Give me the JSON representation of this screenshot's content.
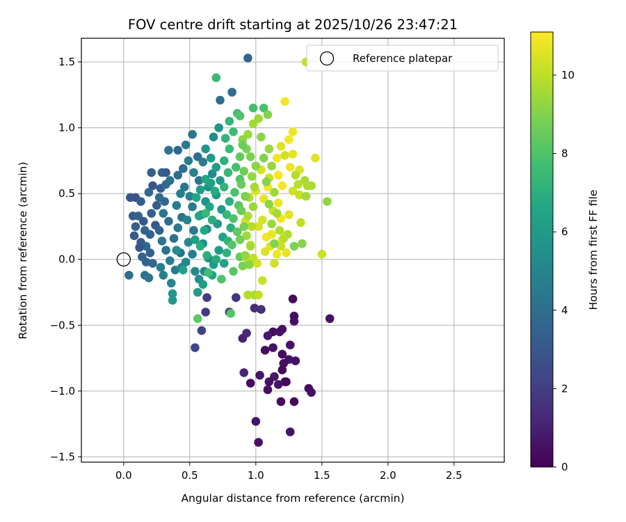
{
  "chart_data": {
    "type": "scatter",
    "title": "FOV centre drift starting at 2025/10/26 23:47:21",
    "xlabel": "Angular distance from reference (arcmin)",
    "ylabel": "Rotation from reference (arcmin)",
    "xlim": [
      -0.32,
      2.88
    ],
    "ylim": [
      -1.54,
      1.68
    ],
    "xticks": [
      0.0,
      0.5,
      1.0,
      1.5,
      2.0,
      2.5
    ],
    "xtick_labels": [
      "0.0",
      "0.5",
      "1.0",
      "1.5",
      "2.0",
      "2.5"
    ],
    "yticks": [
      -1.5,
      -1.0,
      -0.5,
      0.0,
      0.5,
      1.0,
      1.5
    ],
    "ytick_labels": [
      "−1.5",
      "−1.0",
      "−0.5",
      "0.0",
      "0.5",
      "1.0",
      "1.5"
    ],
    "grid": true,
    "legend": {
      "location": "top-right",
      "entries": [
        "Reference platepar"
      ]
    },
    "reference": {
      "x": 0.0,
      "y": 0.0,
      "label": "Reference platepar"
    },
    "colorbar": {
      "label": "Hours from first FF file",
      "colormap": "viridis",
      "range": [
        0,
        11.1
      ],
      "ticks": [
        0,
        2,
        4,
        6,
        8,
        10
      ],
      "tick_labels": [
        "0",
        "2",
        "4",
        "6",
        "8",
        "10"
      ]
    },
    "points": [
      [
        1.28,
        -0.3,
        0.3
      ],
      [
        1.29,
        -0.43,
        0.4
      ],
      [
        1.56,
        -0.45,
        0.5
      ],
      [
        1.29,
        -0.47,
        0.4
      ],
      [
        1.26,
        -0.65,
        0.5
      ],
      [
        1.13,
        -0.55,
        0.4
      ],
      [
        1.18,
        -0.55,
        0.6
      ],
      [
        1.2,
        -0.53,
        0.5
      ],
      [
        1.09,
        -0.58,
        0.8
      ],
      [
        1.13,
        -0.67,
        0.5
      ],
      [
        1.07,
        -0.69,
        0.4
      ],
      [
        1.2,
        -0.72,
        0.3
      ],
      [
        1.25,
        -0.76,
        0.6
      ],
      [
        1.3,
        -0.77,
        0.5
      ],
      [
        1.21,
        -0.79,
        0.4
      ],
      [
        1.2,
        -0.84,
        0.3
      ],
      [
        1.14,
        -0.89,
        0.7
      ],
      [
        1.03,
        -0.88,
        0.6
      ],
      [
        1.1,
        -0.93,
        0.5
      ],
      [
        1.22,
        -0.93,
        0.4
      ],
      [
        1.23,
        -0.93,
        0.2
      ],
      [
        1.17,
        -0.95,
        0.6
      ],
      [
        1.09,
        -0.99,
        0.5
      ],
      [
        0.96,
        -0.94,
        0.3
      ],
      [
        1.4,
        -0.98,
        0.4
      ],
      [
        1.42,
        -1.01,
        0.5
      ],
      [
        1.19,
        -1.08,
        0.3
      ],
      [
        1.29,
        -1.08,
        0.2
      ],
      [
        1.0,
        -1.23,
        0.6
      ],
      [
        1.26,
        -1.31,
        0.6
      ],
      [
        1.02,
        -1.39,
        0.5
      ],
      [
        0.9,
        -0.6,
        1.0
      ],
      [
        0.91,
        -0.86,
        1.2
      ],
      [
        0.93,
        -0.56,
        1.3
      ],
      [
        0.8,
        -0.4,
        1.6
      ],
      [
        0.85,
        -0.29,
        1.7
      ],
      [
        0.99,
        -0.37,
        1.4
      ],
      [
        1.04,
        -0.38,
        1.5
      ],
      [
        0.62,
        -0.4,
        1.9
      ],
      [
        0.59,
        -0.54,
        2.2
      ],
      [
        0.54,
        -0.67,
        2.3
      ],
      [
        0.63,
        -0.29,
        2.0
      ],
      [
        0.94,
        1.53,
        3.6
      ],
      [
        0.73,
        1.21,
        3.9
      ],
      [
        0.82,
        1.27,
        4.0
      ],
      [
        0.34,
        0.83,
        4.2
      ],
      [
        0.41,
        0.83,
        3.7
      ],
      [
        0.47,
        0.87,
        4.5
      ],
      [
        0.52,
        0.95,
        4.3
      ],
      [
        0.21,
        0.66,
        3.2
      ],
      [
        0.29,
        0.66,
        3.4
      ],
      [
        0.32,
        0.66,
        3.1
      ],
      [
        0.09,
        0.47,
        2.8
      ],
      [
        0.13,
        0.44,
        3.3
      ],
      [
        0.05,
        0.47,
        2.9
      ],
      [
        0.07,
        0.33,
        3.2
      ],
      [
        0.11,
        0.33,
        3.5
      ],
      [
        0.15,
        0.29,
        3.0
      ],
      [
        0.09,
        0.25,
        3.3
      ],
      [
        0.16,
        0.22,
        3.6
      ],
      [
        0.08,
        0.18,
        3.1
      ],
      [
        0.2,
        0.19,
        3.4
      ],
      [
        0.13,
        0.13,
        3.2
      ],
      [
        0.17,
        0.1,
        3.7
      ],
      [
        0.12,
        0.09,
        2.9
      ],
      [
        0.2,
        0.05,
        3.3
      ],
      [
        0.14,
        0.02,
        3.5
      ],
      [
        0.17,
        -0.02,
        3.6
      ],
      [
        0.22,
        -0.03,
        3.8
      ],
      [
        0.04,
        -0.12,
        4.0
      ],
      [
        0.16,
        -0.12,
        4.1
      ],
      [
        0.19,
        -0.14,
        4.2
      ],
      [
        0.24,
        0.26,
        3.1
      ],
      [
        0.27,
        0.22,
        3.5
      ],
      [
        0.21,
        0.35,
        3.4
      ],
      [
        0.25,
        0.41,
        3.2
      ],
      [
        0.27,
        0.47,
        3.9
      ],
      [
        0.31,
        0.44,
        3.6
      ],
      [
        0.28,
        0.54,
        3.3
      ],
      [
        0.32,
        0.57,
        3.8
      ],
      [
        0.35,
        0.6,
        4.1
      ],
      [
        0.22,
        0.56,
        3.0
      ],
      [
        0.19,
        0.51,
        3.7
      ],
      [
        0.3,
        0.35,
        4.3
      ],
      [
        0.34,
        0.29,
        4.0
      ],
      [
        0.29,
        0.14,
        4.4
      ],
      [
        0.32,
        0.07,
        4.2
      ],
      [
        0.35,
        -0.01,
        4.6
      ],
      [
        0.28,
        -0.06,
        4.7
      ],
      [
        0.3,
        -0.12,
        4.8
      ],
      [
        0.36,
        -0.18,
        5.0
      ],
      [
        0.39,
        -0.08,
        4.6
      ],
      [
        0.44,
        -0.06,
        4.9
      ],
      [
        0.43,
        0.05,
        4.3
      ],
      [
        0.38,
        0.16,
        4.1
      ],
      [
        0.41,
        0.24,
        4.5
      ],
      [
        0.44,
        0.32,
        4.2
      ],
      [
        0.4,
        0.41,
        4.6
      ],
      [
        0.43,
        0.5,
        4.8
      ],
      [
        0.46,
        0.55,
        4.4
      ],
      [
        0.41,
        0.64,
        3.9
      ],
      [
        0.45,
        0.69,
        4.0
      ],
      [
        0.49,
        0.75,
        4.7
      ],
      [
        0.56,
        0.78,
        4.1
      ],
      [
        0.6,
        0.74,
        4.5
      ],
      [
        0.53,
        0.66,
        4.9
      ],
      [
        0.57,
        0.6,
        4.3
      ],
      [
        0.5,
        0.48,
        4.8
      ],
      [
        0.52,
        0.4,
        4.6
      ],
      [
        0.48,
        0.3,
        5.0
      ],
      [
        0.53,
        0.22,
        4.4
      ],
      [
        0.49,
        0.13,
        5.1
      ],
      [
        0.52,
        0.04,
        4.7
      ],
      [
        0.47,
        -0.02,
        5.2
      ],
      [
        0.54,
        -0.09,
        5.3
      ],
      [
        0.57,
        -0.15,
        5.4
      ],
      [
        0.61,
        -0.09,
        5.0
      ],
      [
        0.64,
        0.01,
        5.1
      ],
      [
        0.6,
        0.12,
        5.5
      ],
      [
        0.63,
        0.23,
        5.3
      ],
      [
        0.59,
        0.34,
        5.0
      ],
      [
        0.62,
        0.44,
        5.6
      ],
      [
        0.64,
        0.55,
        5.4
      ],
      [
        0.67,
        0.65,
        5.2
      ],
      [
        0.62,
        0.84,
        5.7
      ],
      [
        0.68,
        0.93,
        5.3
      ],
      [
        0.72,
        1.0,
        5.6
      ],
      [
        0.66,
        0.77,
        5.9
      ],
      [
        0.7,
        0.7,
        6.1
      ],
      [
        0.73,
        0.6,
        6.0
      ],
      [
        0.7,
        0.49,
        5.8
      ],
      [
        0.74,
        0.38,
        6.2
      ],
      [
        0.71,
        0.27,
        5.9
      ],
      [
        0.75,
        0.17,
        6.3
      ],
      [
        0.72,
        0.07,
        6.0
      ],
      [
        0.76,
        -0.03,
        6.4
      ],
      [
        0.68,
        -0.04,
        6.1
      ],
      [
        0.67,
        -0.12,
        6.5
      ],
      [
        0.6,
        -0.19,
        6.2
      ],
      [
        0.56,
        -0.25,
        6.0
      ],
      [
        0.37,
        -0.26,
        5.7
      ],
      [
        0.37,
        -0.31,
        5.9
      ],
      [
        0.45,
        -0.08,
        6.3
      ],
      [
        0.4,
        0.07,
        5.5
      ],
      [
        0.54,
        0.15,
        6.2
      ],
      [
        0.57,
        0.33,
        6.4
      ],
      [
        0.55,
        0.47,
        6.6
      ],
      [
        0.58,
        0.53,
        6.1
      ],
      [
        0.62,
        0.61,
        6.7
      ],
      [
        0.66,
        0.58,
        6.3
      ],
      [
        0.69,
        0.52,
        6.8
      ],
      [
        0.65,
        0.4,
        6.5
      ],
      [
        0.67,
        0.3,
        6.9
      ],
      [
        0.61,
        0.22,
        6.6
      ],
      [
        0.58,
        0.1,
        6.9
      ],
      [
        0.63,
        0.03,
        7.0
      ],
      [
        0.7,
        0.0,
        6.8
      ],
      [
        0.78,
        0.05,
        7.1
      ],
      [
        0.79,
        0.14,
        7.2
      ],
      [
        0.81,
        0.24,
        6.9
      ],
      [
        0.78,
        0.34,
        7.3
      ],
      [
        0.8,
        0.44,
        7.0
      ],
      [
        0.76,
        0.55,
        7.2
      ],
      [
        0.79,
        0.66,
        7.4
      ],
      [
        0.76,
        0.75,
        7.1
      ],
      [
        0.8,
        0.84,
        7.5
      ],
      [
        0.77,
        0.92,
        7.2
      ],
      [
        0.83,
        0.97,
        7.6
      ],
      [
        0.8,
        1.05,
        7.3
      ],
      [
        0.86,
        1.11,
        7.7
      ],
      [
        0.7,
        1.38,
        7.5
      ],
      [
        0.98,
        1.15,
        7.8
      ],
      [
        1.06,
        1.15,
        7.9
      ],
      [
        0.88,
        1.09,
        8.0
      ],
      [
        0.85,
        0.7,
        7.8
      ],
      [
        0.88,
        0.61,
        8.1
      ],
      [
        0.84,
        0.51,
        7.9
      ],
      [
        0.87,
        0.41,
        8.2
      ],
      [
        0.83,
        0.31,
        8.0
      ],
      [
        0.86,
        0.21,
        8.3
      ],
      [
        0.82,
        0.11,
        8.1
      ],
      [
        0.88,
        0.02,
        8.4
      ],
      [
        0.83,
        -0.09,
        8.2
      ],
      [
        0.74,
        -0.15,
        8.0
      ],
      [
        0.64,
        -0.1,
        7.6
      ],
      [
        0.62,
        0.35,
        7.4
      ],
      [
        0.56,
        -0.45,
        8.3
      ],
      [
        0.81,
        -0.41,
        8.1
      ],
      [
        0.99,
        -0.27,
        9.6
      ],
      [
        0.94,
        -0.27,
        9.8
      ],
      [
        1.02,
        -0.27,
        10.0
      ],
      [
        1.05,
        -0.16,
        10.2
      ],
      [
        1.14,
        -0.03,
        10.3
      ],
      [
        1.01,
        -0.03,
        10.4
      ],
      [
        1.07,
        0.06,
        10.5
      ],
      [
        1.11,
        0.1,
        10.6
      ],
      [
        0.96,
        0.11,
        10.2
      ],
      [
        0.93,
        0.01,
        10.0
      ],
      [
        0.98,
        0.01,
        10.1
      ],
      [
        1.16,
        0.04,
        10.8
      ],
      [
        1.23,
        0.05,
        10.7
      ],
      [
        1.2,
        0.15,
        10.6
      ],
      [
        1.08,
        0.17,
        10.9
      ],
      [
        1.12,
        0.19,
        10.8
      ],
      [
        1.02,
        0.25,
        10.5
      ],
      [
        1.05,
        0.3,
        10.4
      ],
      [
        0.92,
        0.29,
        10.3
      ],
      [
        1.19,
        0.31,
        10.9
      ],
      [
        1.13,
        0.37,
        10.2
      ],
      [
        1.25,
        0.34,
        10.6
      ],
      [
        1.17,
        0.43,
        10.8
      ],
      [
        1.06,
        0.46,
        10.7
      ],
      [
        1.0,
        0.52,
        10.5
      ],
      [
        1.09,
        0.55,
        10.9
      ],
      [
        1.2,
        0.56,
        11.0
      ],
      [
        1.28,
        0.52,
        10.3
      ],
      [
        1.33,
        0.49,
        10.1
      ],
      [
        1.1,
        0.62,
        10.2
      ],
      [
        1.04,
        0.68,
        10.4
      ],
      [
        1.17,
        0.64,
        10.6
      ],
      [
        1.26,
        0.7,
        10.8
      ],
      [
        1.33,
        0.68,
        10.5
      ],
      [
        1.16,
        0.77,
        10.9
      ],
      [
        1.22,
        0.79,
        10.3
      ],
      [
        1.28,
        0.8,
        10.7
      ],
      [
        1.19,
        0.86,
        10.6
      ],
      [
        1.25,
        0.91,
        11.0
      ],
      [
        1.28,
        0.97,
        10.8
      ],
      [
        1.22,
        1.2,
        10.9
      ],
      [
        1.17,
        0.64,
        11.0
      ],
      [
        1.3,
        0.64,
        9.8
      ],
      [
        1.37,
        0.6,
        9.6
      ],
      [
        1.39,
        0.56,
        9.7
      ],
      [
        1.32,
        0.57,
        9.9
      ],
      [
        1.38,
        0.48,
        9.5
      ],
      [
        1.34,
        0.28,
        10.0
      ],
      [
        1.24,
        0.19,
        9.8
      ],
      [
        1.21,
        0.16,
        9.9
      ],
      [
        1.19,
        0.1,
        10.2
      ],
      [
        1.5,
        0.04,
        10.3
      ],
      [
        1.45,
        0.77,
        10.6
      ],
      [
        1.42,
        0.56,
        9.7
      ],
      [
        1.54,
        0.44,
        9.3
      ],
      [
        1.35,
        0.12,
        9.1
      ],
      [
        1.29,
        0.1,
        8.9
      ],
      [
        1.09,
        1.1,
        9.0
      ],
      [
        1.02,
        1.07,
        9.5
      ],
      [
        0.98,
        1.03,
        9.6
      ],
      [
        0.94,
        0.95,
        9.4
      ],
      [
        0.9,
        0.91,
        9.2
      ],
      [
        0.93,
        0.84,
        9.0
      ],
      [
        0.96,
        0.78,
        8.9
      ],
      [
        1.0,
        0.71,
        9.1
      ],
      [
        0.97,
        0.63,
        9.3
      ],
      [
        0.99,
        0.55,
        9.6
      ],
      [
        0.95,
        0.47,
        9.8
      ],
      [
        0.98,
        0.4,
        9.4
      ],
      [
        0.94,
        0.33,
        9.7
      ],
      [
        0.97,
        0.25,
        9.9
      ],
      [
        0.93,
        0.18,
        9.5
      ],
      [
        0.96,
        0.1,
        9.6
      ],
      [
        0.92,
        0.03,
        9.3
      ],
      [
        0.95,
        -0.04,
        9.1
      ],
      [
        0.9,
        -0.05,
        8.9
      ],
      [
        0.88,
        0.15,
        8.7
      ],
      [
        0.91,
        0.25,
        8.8
      ],
      [
        0.89,
        0.37,
        8.6
      ],
      [
        0.92,
        0.48,
        8.9
      ],
      [
        0.89,
        0.57,
        8.5
      ],
      [
        0.91,
        0.67,
        8.7
      ],
      [
        0.88,
        0.78,
        8.4
      ],
      [
        0.9,
        0.87,
        8.6
      ],
      [
        1.04,
        0.93,
        9.2
      ],
      [
        1.1,
        0.84,
        9.4
      ],
      [
        1.06,
        0.77,
        9.0
      ],
      [
        1.12,
        0.71,
        9.3
      ],
      [
        1.08,
        0.59,
        9.1
      ],
      [
        1.14,
        0.51,
        9.5
      ],
      [
        1.1,
        0.42,
        9.2
      ],
      [
        1.16,
        0.35,
        9.6
      ],
      [
        1.12,
        0.27,
        9.4
      ],
      [
        1.18,
        0.22,
        9.8
      ],
      [
        1.14,
        0.12,
        9.0
      ],
      [
        1.38,
        1.5,
        10.0
      ]
    ]
  }
}
